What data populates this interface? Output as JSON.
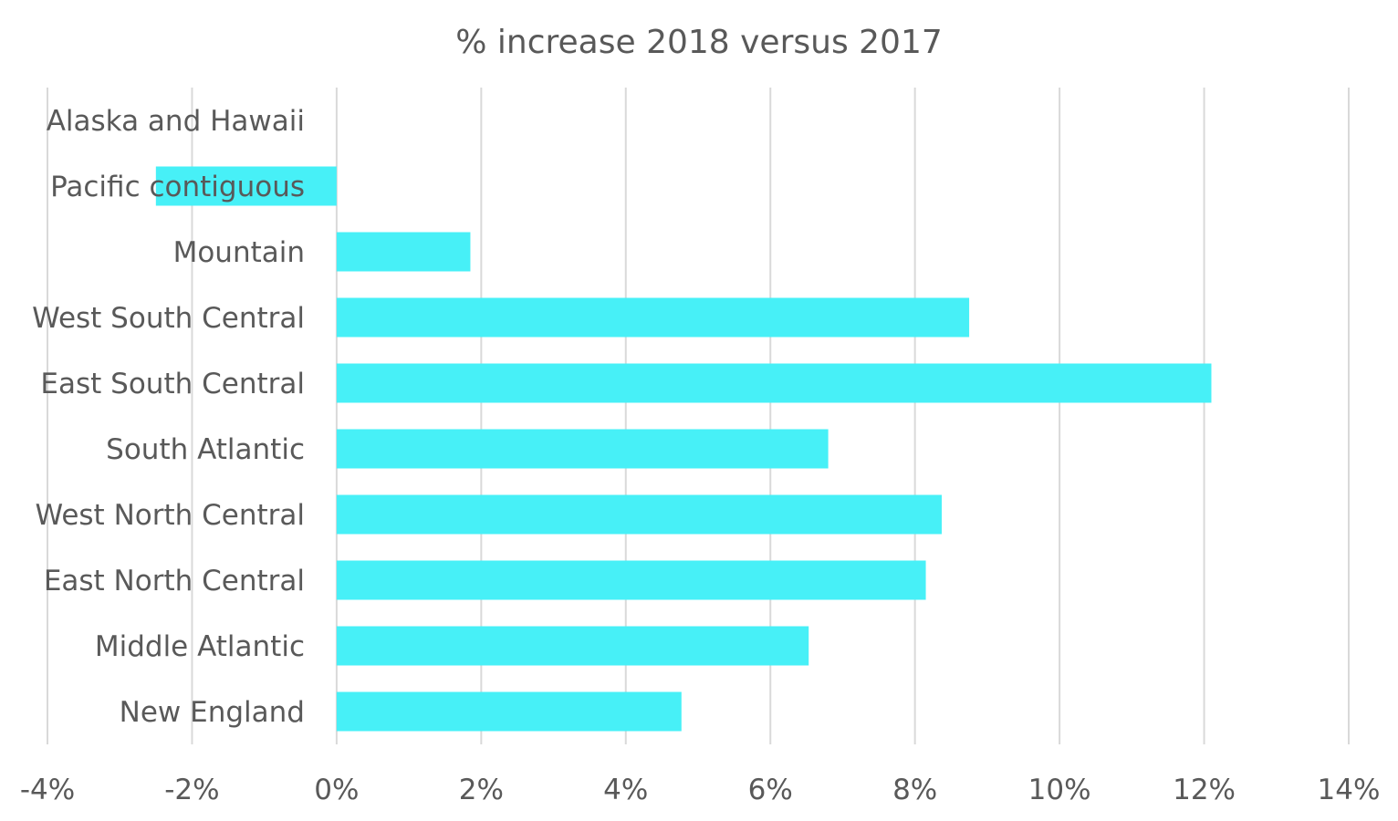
{
  "chart_data": {
    "type": "bar",
    "orientation": "horizontal",
    "title": "% increase 2018 versus 2017",
    "xlabel": "",
    "ylabel": "",
    "categories": [
      "Alaska and Hawaii",
      "Pacific contiguous",
      "Mountain",
      "West South Central",
      "East South Central",
      "South Atlantic",
      "West North Central",
      "East North Central",
      "Middle Atlantic",
      "New England"
    ],
    "values": [
      0,
      -2.5,
      1.85,
      8.75,
      12.1,
      6.8,
      8.37,
      8.15,
      6.53,
      4.77
    ],
    "xlim": [
      -4,
      14
    ],
    "xticks": [
      -4,
      -2,
      0,
      2,
      4,
      6,
      8,
      10,
      12,
      14
    ],
    "tick_labels": [
      "-4%",
      "-2%",
      "0%",
      "2%",
      "4%",
      "6%",
      "8%",
      "10%",
      "12%",
      "14%"
    ],
    "grid": true,
    "legend": "none",
    "bar_color": "#47F0F7",
    "text_color": "#595959",
    "grid_color": "#D9D9D9"
  }
}
